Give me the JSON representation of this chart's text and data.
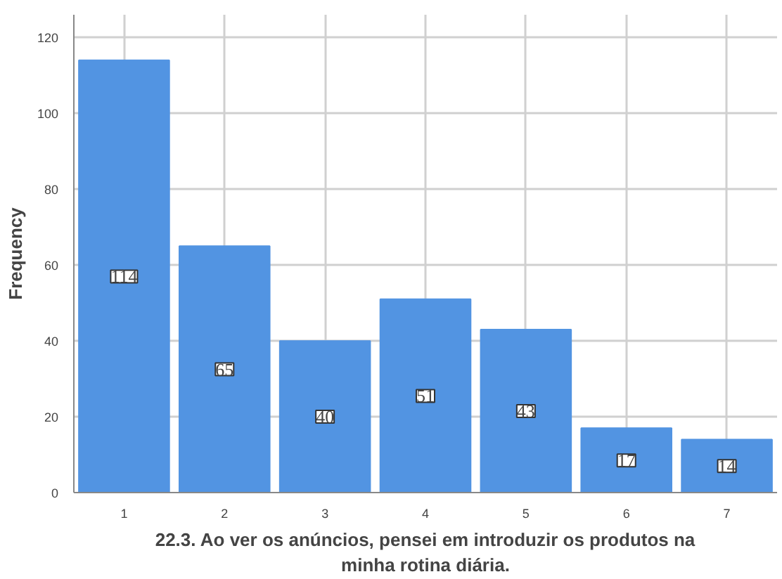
{
  "chart_data": {
    "type": "bar",
    "categories": [
      "1",
      "2",
      "3",
      "4",
      "5",
      "6",
      "7"
    ],
    "values": [
      114,
      65,
      40,
      51,
      43,
      17,
      14
    ],
    "color": "#5294e2",
    "ylim": [
      0,
      126
    ],
    "yticks": [
      0,
      20,
      40,
      60,
      80,
      100,
      120
    ],
    "xlabel": "22.3. Ao ver os anúncios, pensei em introduzir os produtos na minha rotina diária.",
    "ylabel": "Frequency",
    "grid": true,
    "data_labels": true
  }
}
